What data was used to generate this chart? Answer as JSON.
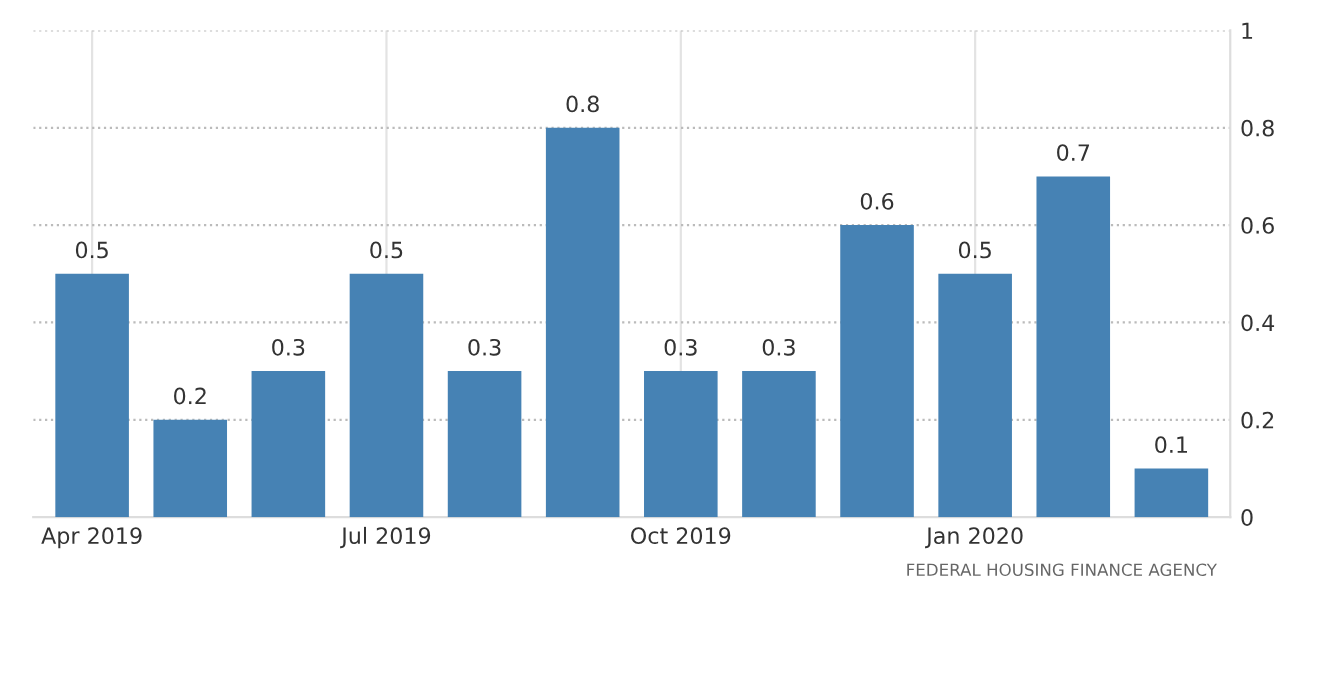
{
  "chart_data": {
    "type": "bar",
    "categories": [
      "Apr 2019",
      null,
      null,
      "Jul 2019",
      null,
      null,
      "Oct 2019",
      null,
      null,
      "Jan 2020",
      null,
      null
    ],
    "values": [
      0.5,
      0.2,
      0.3,
      0.5,
      0.3,
      0.8,
      0.3,
      0.3,
      0.6,
      0.5,
      0.7,
      0.1
    ],
    "color": "#4682b4",
    "ylim": [
      0,
      1
    ],
    "yticks": [
      0,
      0.2,
      0.4,
      0.6,
      0.8,
      1
    ],
    "grid": true,
    "data_labels": true,
    "annotations": [
      "FEDERAL HOUSING FINANCE AGENCY"
    ]
  }
}
